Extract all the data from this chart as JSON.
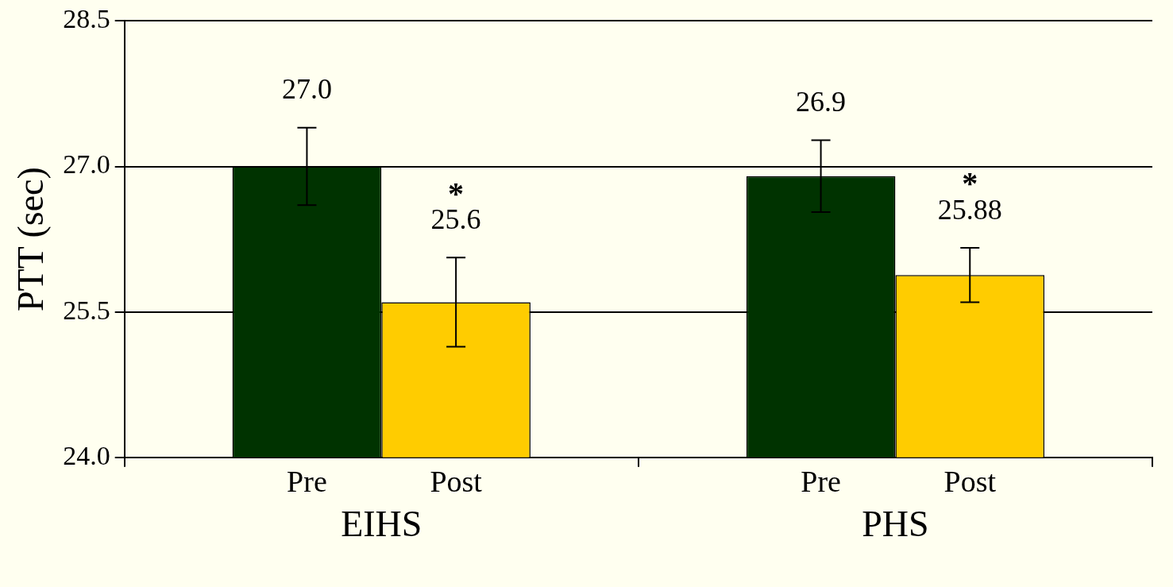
{
  "chart_data": {
    "type": "bar",
    "ylabel": "PTT (sec)",
    "categories": [
      "EIHS",
      "PHS"
    ],
    "series": [
      {
        "name": "Pre",
        "color": "#003300",
        "values": [
          27.0,
          26.9
        ],
        "errors": [
          0.4,
          0.37
        ],
        "value_labels": [
          "27.0",
          "26.9"
        ]
      },
      {
        "name": "Post",
        "color": "#ffcc00",
        "values": [
          25.6,
          25.88
        ],
        "errors": [
          0.46,
          0.28
        ],
        "value_labels": [
          "25.6",
          "25.88"
        ]
      }
    ],
    "annotations": [
      "*",
      "*"
    ],
    "ylim": [
      24.0,
      28.5
    ],
    "yticks": [
      {
        "value": 24.0,
        "label": "24.0"
      },
      {
        "value": 25.5,
        "label": "25.5"
      },
      {
        "value": 27.0,
        "label": "27.0"
      },
      {
        "value": 28.5,
        "label": "28.5"
      }
    ],
    "grid": "y",
    "legend": false
  }
}
